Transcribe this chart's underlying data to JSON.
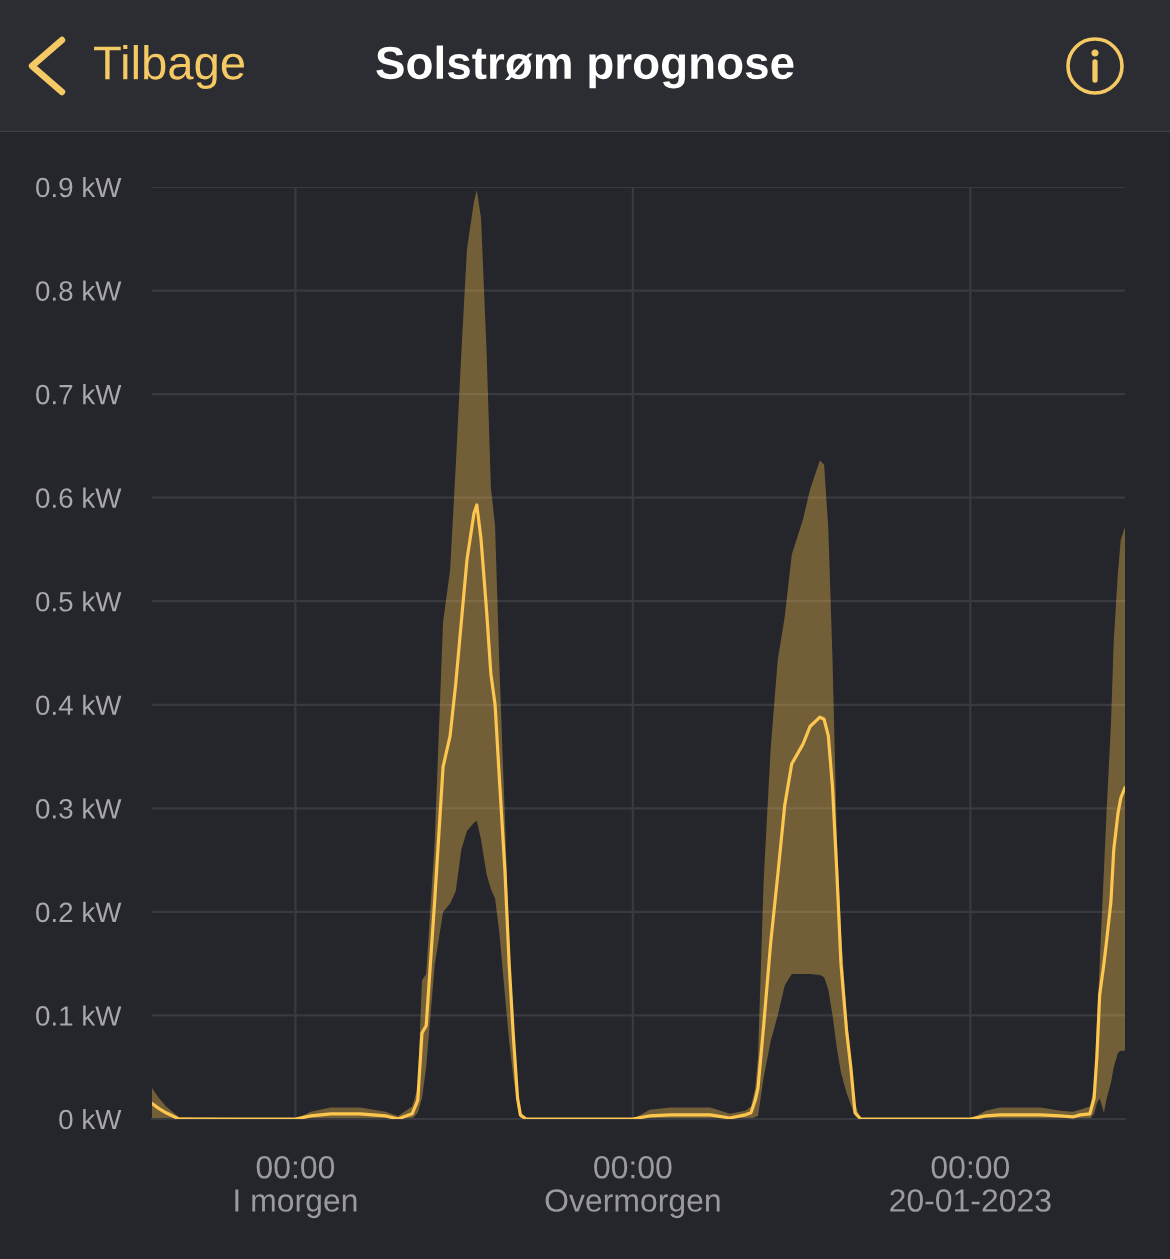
{
  "chart_data": {
    "type": "line",
    "title": "Solstrøm prognose",
    "annotations": [
      "Tilbage"
    ],
    "x": [
      "2023-01-17T13:48",
      "2023-01-17T14:18",
      "2023-01-17T14:48",
      "2023-01-17T15:42",
      "2023-01-18T00:00",
      "2023-01-18T01:06",
      "2023-01-18T02:30",
      "2023-01-18T04:36",
      "2023-01-18T06:24",
      "2023-01-18T07:18",
      "2023-01-18T08:18",
      "2023-01-18T08:42",
      "2023-01-18T09:00",
      "2023-01-18T09:18",
      "2023-01-18T09:54",
      "2023-01-18T10:30",
      "2023-01-18T11:00",
      "2023-01-18T11:24",
      "2023-01-18T11:48",
      "2023-01-18T12:12",
      "2023-01-18T12:42",
      "2023-01-18T12:54",
      "2023-01-18T13:12",
      "2023-01-18T13:36",
      "2023-01-18T13:54",
      "2023-01-18T14:12",
      "2023-01-18T14:30",
      "2023-01-18T14:54",
      "2023-01-18T15:12",
      "2023-01-18T15:30",
      "2023-01-18T15:48",
      "2023-01-18T16:00",
      "2023-01-18T16:24",
      "2023-01-19T00:00",
      "2023-01-19T01:12",
      "2023-01-19T02:42",
      "2023-01-19T05:30",
      "2023-01-19T06:54",
      "2023-01-19T08:00",
      "2023-01-19T08:24",
      "2023-01-19T08:42",
      "2023-01-19T08:54",
      "2023-01-19T09:18",
      "2023-01-19T09:48",
      "2023-01-19T10:18",
      "2023-01-19T10:48",
      "2023-01-19T11:18",
      "2023-01-19T12:06",
      "2023-01-19T12:36",
      "2023-01-19T13:18",
      "2023-01-19T13:36",
      "2023-01-19T13:54",
      "2023-01-19T14:12",
      "2023-01-19T14:30",
      "2023-01-19T14:48",
      "2023-01-19T15:12",
      "2023-01-19T15:30",
      "2023-01-19T15:48",
      "2023-01-19T16:12",
      "2023-01-20T00:00",
      "2023-01-20T01:06",
      "2023-01-20T02:06",
      "2023-01-20T05:00",
      "2023-01-20T06:24",
      "2023-01-20T07:18",
      "2023-01-20T07:48",
      "2023-01-20T08:30",
      "2023-01-20T08:48",
      "2023-01-20T09:00",
      "2023-01-20T09:12",
      "2023-01-20T09:30",
      "2023-01-20T09:42",
      "2023-01-20T10:00",
      "2023-01-20T10:12",
      "2023-01-20T10:30",
      "2023-01-20T10:42",
      "2023-01-20T11:00"
    ],
    "xlim": [
      "2023-01-17T13:48",
      "2023-01-20T11:00"
    ],
    "xticks": [
      {
        "value": "2023-01-18T00:00",
        "label": "00:00\nI morgen"
      },
      {
        "value": "2023-01-19T00:00",
        "label": "00:00\nOvermorgen"
      },
      {
        "value": "2023-01-20T00:00",
        "label": "00:00\n20-01-2023"
      }
    ],
    "ylim": [
      0,
      0.9
    ],
    "yticks": [
      {
        "value": 0,
        "label": "0 kW"
      },
      {
        "value": 0.1,
        "label": "0.1 kW"
      },
      {
        "value": 0.2,
        "label": "0.2 kW"
      },
      {
        "value": 0.3,
        "label": "0.3 kW"
      },
      {
        "value": 0.4,
        "label": "0.4 kW"
      },
      {
        "value": 0.5,
        "label": "0.5 kW"
      },
      {
        "value": 0.6,
        "label": "0.6 kW"
      },
      {
        "value": 0.7,
        "label": "0.7 kW"
      },
      {
        "value": 0.8,
        "label": "0.8 kW"
      },
      {
        "value": 0.9,
        "label": "0.9 kW"
      }
    ],
    "grid": true,
    "line_style": "solid",
    "series": [
      {
        "color": "#fcc64f",
        "values": [
          0.015,
          0.01,
          0.006,
          0,
          0,
          0.003,
          0.005,
          0.005,
          0.003,
          0,
          0.005,
          0.018,
          0.083,
          0.09,
          0.21,
          0.34,
          0.37,
          0.42,
          0.48,
          0.54,
          0.585,
          0.593,
          0.56,
          0.49,
          0.43,
          0.4,
          0.33,
          0.24,
          0.15,
          0.08,
          0.02,
          0.004,
          0,
          0,
          0.003,
          0.004,
          0.004,
          0.001,
          0.004,
          0.006,
          0.018,
          0.03,
          0.09,
          0.17,
          0.235,
          0.303,
          0.343,
          0.362,
          0.379,
          0.388,
          0.386,
          0.37,
          0.32,
          0.24,
          0.15,
          0.085,
          0.05,
          0.006,
          0,
          0,
          0.003,
          0.004,
          0.004,
          0.003,
          0.002,
          0.004,
          0.005,
          0.02,
          0.06,
          0.12,
          0.15,
          0.173,
          0.21,
          0.26,
          0.295,
          0.31,
          0.32
        ],
        "lower": [
          0,
          0,
          0,
          0,
          0,
          0,
          0,
          0,
          0,
          0,
          0,
          0.006,
          0.02,
          0.05,
          0.148,
          0.2,
          0.208,
          0.22,
          0.26,
          0.278,
          0.286,
          0.288,
          0.27,
          0.236,
          0.222,
          0.213,
          0.18,
          0.12,
          0.075,
          0.04,
          0.012,
          0,
          0,
          0,
          0,
          0,
          0,
          0,
          0,
          0,
          0.002,
          0.003,
          0.04,
          0.075,
          0.1,
          0.129,
          0.14,
          0.14,
          0.14,
          0.139,
          0.137,
          0.125,
          0.1,
          0.069,
          0.045,
          0.025,
          0.014,
          0.003,
          0,
          0,
          0,
          0,
          0,
          0,
          0,
          0,
          0,
          0.005,
          0.015,
          0.02,
          0.006,
          0.02,
          0.035,
          0.05,
          0.064,
          0.066,
          0.066
        ],
        "upper": [
          0.03,
          0.02,
          0.012,
          0.002,
          0,
          0.007,
          0.011,
          0.011,
          0.007,
          0.003,
          0.012,
          0.03,
          0.134,
          0.14,
          0.266,
          0.48,
          0.53,
          0.63,
          0.74,
          0.84,
          0.886,
          0.897,
          0.87,
          0.74,
          0.61,
          0.573,
          0.44,
          0.29,
          0.17,
          0.09,
          0.03,
          0.006,
          0,
          0,
          0.009,
          0.011,
          0.011,
          0.005,
          0.008,
          0.012,
          0.03,
          0.06,
          0.23,
          0.358,
          0.443,
          0.485,
          0.545,
          0.579,
          0.608,
          0.636,
          0.632,
          0.57,
          0.443,
          0.273,
          0.18,
          0.1,
          0.06,
          0.015,
          0,
          0,
          0.008,
          0.011,
          0.011,
          0.008,
          0.007,
          0.009,
          0.012,
          0.03,
          0.09,
          0.15,
          0.24,
          0.3,
          0.381,
          0.462,
          0.528,
          0.559,
          0.572
        ]
      }
    ]
  }
}
